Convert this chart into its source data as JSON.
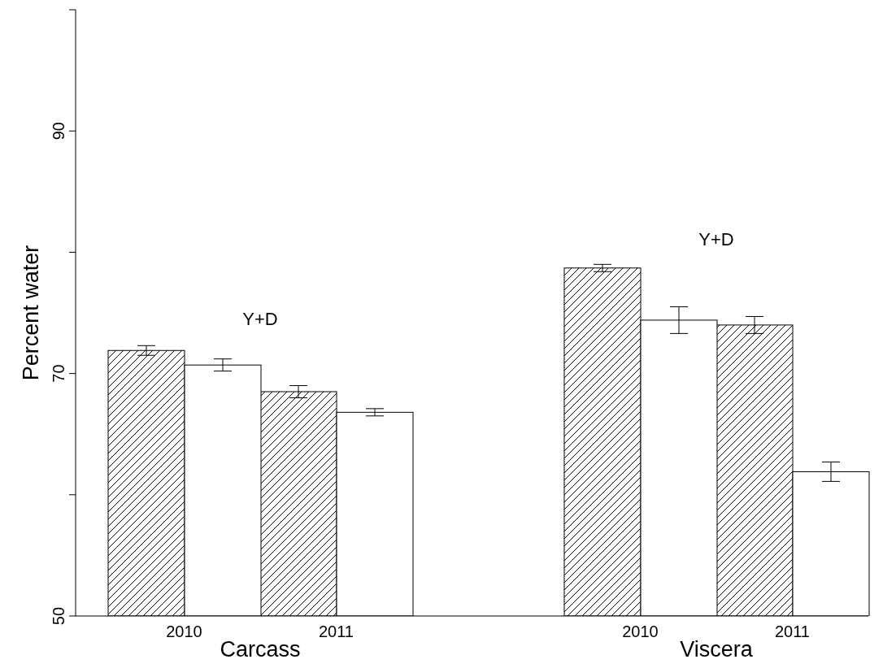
{
  "chart_data": {
    "type": "bar",
    "ylabel": "Percent water",
    "categories": [
      "2010",
      "2011",
      null,
      "2010",
      "2011"
    ],
    "series": [
      {
        "color": "#000000",
        "values": [
          71.9,
          68.5,
          null,
          78.7,
          74.0
        ],
        "errors": [
          0.4,
          0.5,
          null,
          0.3,
          0.7
        ]
      },
      {
        "color": "#000000",
        "values": [
          70.7,
          66.8,
          null,
          74.4,
          61.9
        ],
        "errors": [
          0.5,
          0.3,
          null,
          1.1,
          0.8
        ]
      }
    ],
    "ylim": [
      50,
      100
    ],
    "yticks": [
      50,
      {
        "value": 60,
        "label": null
      },
      70,
      {
        "value": 80,
        "label": null
      },
      90,
      {
        "value": 100,
        "label": null
      }
    ],
    "annotations": [
      "Y+D",
      "Y+D",
      "Carcass",
      "Viscera"
    ],
    "grid": false,
    "legend": false
  }
}
